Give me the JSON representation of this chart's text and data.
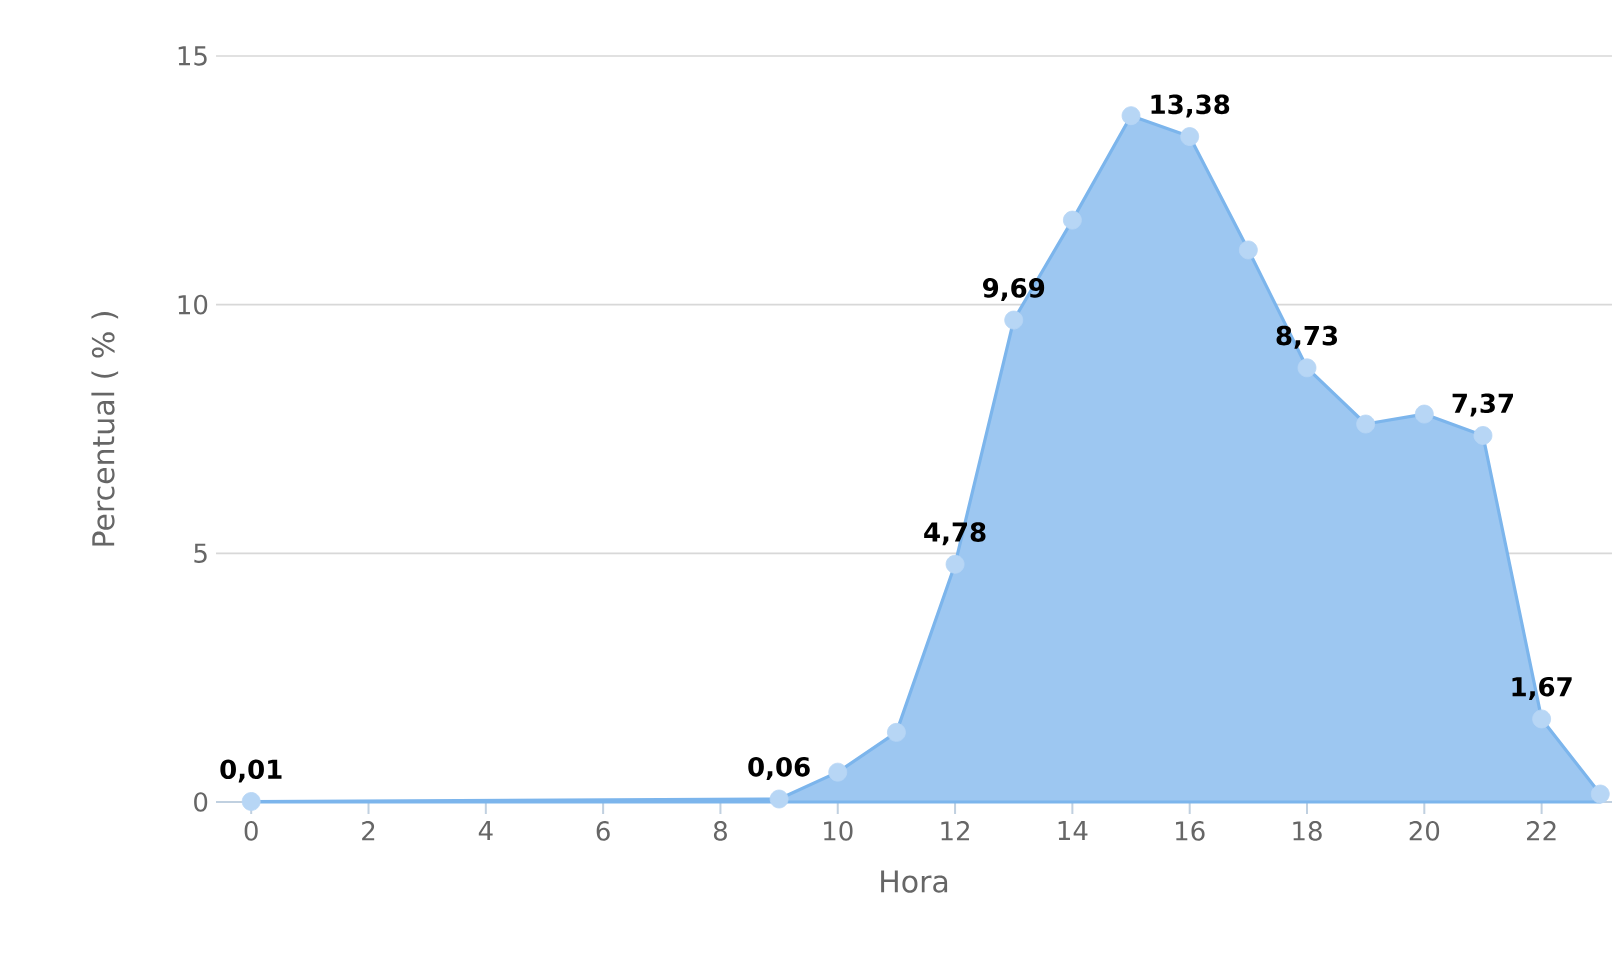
{
  "chart_data": {
    "type": "area",
    "xlabel": "Hora",
    "ylabel": "Percentual ( % )",
    "x": [
      0,
      9,
      10,
      11,
      12,
      13,
      14,
      15,
      16,
      17,
      18,
      19,
      20,
      21,
      22,
      23
    ],
    "series": [
      {
        "color": "#7cb5ec",
        "values": [
          0.01,
          0.06,
          0.6,
          1.4,
          4.78,
          9.69,
          11.7,
          13.8,
          13.38,
          11.1,
          8.73,
          7.6,
          7.8,
          7.37,
          1.67,
          0.16
        ],
        "value_labels": [
          "0,01",
          "0,06",
          null,
          null,
          "4,78",
          "9,69",
          null,
          null,
          "13,38",
          null,
          "8,73",
          null,
          null,
          "7,37",
          "1,67",
          null
        ]
      }
    ],
    "xlim": [
      -0.6,
      23.2
    ],
    "ylim": [
      0,
      15
    ],
    "xticks": [
      0,
      2,
      4,
      6,
      8,
      10,
      12,
      14,
      16,
      18,
      20,
      22
    ],
    "yticks": [
      0,
      5,
      10,
      15
    ],
    "grid": "y",
    "marker": "circle"
  }
}
